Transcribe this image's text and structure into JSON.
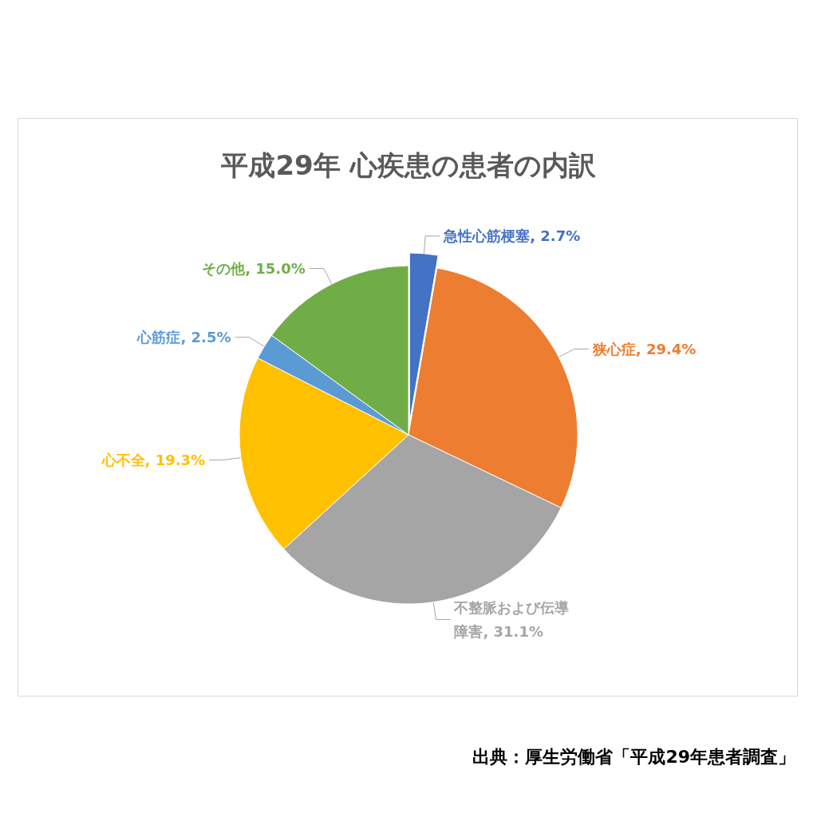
{
  "chart_data": {
    "type": "pie",
    "title": "平成29年 心疾患の患者の内訳",
    "categories": [
      "急性心筋梗塞",
      "狭心症",
      "不整脈および伝導障害",
      "心不全",
      "心筋症",
      "その他"
    ],
    "values": [
      2.7,
      29.4,
      31.1,
      19.3,
      2.5,
      15.0
    ],
    "value_labels": [
      "2.7%",
      "29.4%",
      "31.1%",
      "19.3%",
      "2.5%",
      "15.0%"
    ],
    "colors": [
      "#4472c4",
      "#ed7d31",
      "#a5a5a5",
      "#ffc000",
      "#5b9bd5",
      "#70ad47"
    ],
    "legend": false,
    "annotations": [
      "出典：厚生労働省「平成29年患者調査」"
    ]
  }
}
